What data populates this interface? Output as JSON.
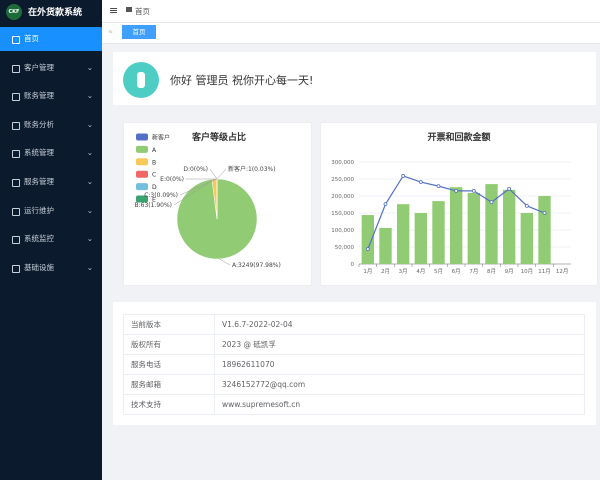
{
  "app": {
    "logo": "CKF",
    "title": "在外货款系统"
  },
  "menu": [
    "首页",
    "客户管理",
    "账务管理",
    "账务分析",
    "系统管理",
    "服务管理",
    "运行维护",
    "系统监控",
    "基础设施"
  ],
  "breadcrumb": "首页",
  "tab": "首页",
  "welcome": "你好 管理员 祝你开心每一天!",
  "chart_data": [
    {
      "type": "pie",
      "title": "客户等级占比",
      "categories": [
        "新客户",
        "A",
        "B",
        "C",
        "D",
        "E"
      ],
      "values": [
        1,
        3249,
        63,
        3,
        0,
        0
      ],
      "value_labels": [
        "新客户:1(0.03%)",
        "A:3249(97.98%)",
        "B:63(1.90%)",
        "C:3(0.09%)",
        "D:0(0%)",
        "E:0(0%)"
      ],
      "colors": [
        "#5470c6",
        "#91cc75",
        "#fac858",
        "#ee6666",
        "#73c0de",
        "#3ba272"
      ]
    },
    {
      "type": "bar-line",
      "title": "开票和回款金额",
      "categories": [
        "1月",
        "2月",
        "3月",
        "4月",
        "5月",
        "6月",
        "7月",
        "8月",
        "9月",
        "10月",
        "11月",
        "12月"
      ],
      "series": [
        {
          "type": "bar",
          "color": "#91cc75",
          "values": [
            144000,
            106000,
            176000,
            150000,
            185000,
            226000,
            209000,
            235000,
            218000,
            150000,
            200000,
            null
          ]
        },
        {
          "type": "line",
          "color": "#5470c6",
          "values": [
            44000,
            176000,
            259000,
            241000,
            229000,
            215000,
            215000,
            182000,
            221000,
            171000,
            150000,
            null
          ]
        }
      ],
      "ylim": [
        0,
        300000
      ],
      "yticks": [
        0,
        {
          "value": 50000,
          "label": "50,000"
        },
        {
          "value": 100000,
          "label": "100,000"
        },
        {
          "value": 150000,
          "label": "150,000"
        },
        {
          "value": 200000,
          "label": "200,000"
        },
        {
          "value": 250000,
          "label": "250,000"
        },
        {
          "value": 300000,
          "label": "300,000"
        }
      ],
      "grid": true
    }
  ],
  "info": {
    "rows": [
      [
        "当前版本",
        "V1.6.7-2022-02-04"
      ],
      [
        "版权所有",
        "2023 @ 砥凯孚"
      ],
      [
        "服务电话",
        "18962611070"
      ],
      [
        "服务邮箱",
        "3246152772@qq.com"
      ],
      [
        "技术支持",
        "www.supremesoft.cn"
      ]
    ]
  }
}
